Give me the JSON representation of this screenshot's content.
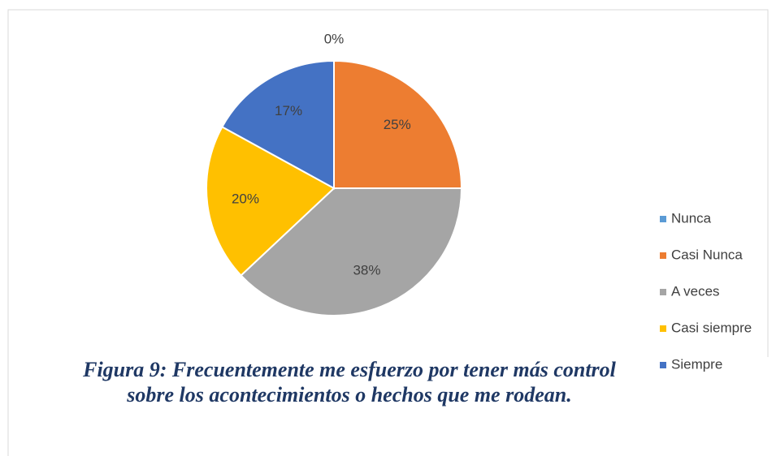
{
  "chart_data": {
    "type": "pie",
    "title": "Figura 9: Frecuentemente me esfuerzo por tener más control sobre los acontecimientos o hechos que me rodean.",
    "categories": [
      "Nunca",
      "Casi Nunca",
      "A veces",
      "Casi siempre",
      "Siempre"
    ],
    "values": [
      0,
      25,
      38,
      20,
      17
    ],
    "value_labels": [
      "0%",
      "25%",
      "38%",
      "20%",
      "17%"
    ],
    "colors": [
      "#5b9bd5",
      "#ed7d31",
      "#a5a5a5",
      "#ffc000",
      "#4472c4"
    ],
    "legend": "right"
  }
}
